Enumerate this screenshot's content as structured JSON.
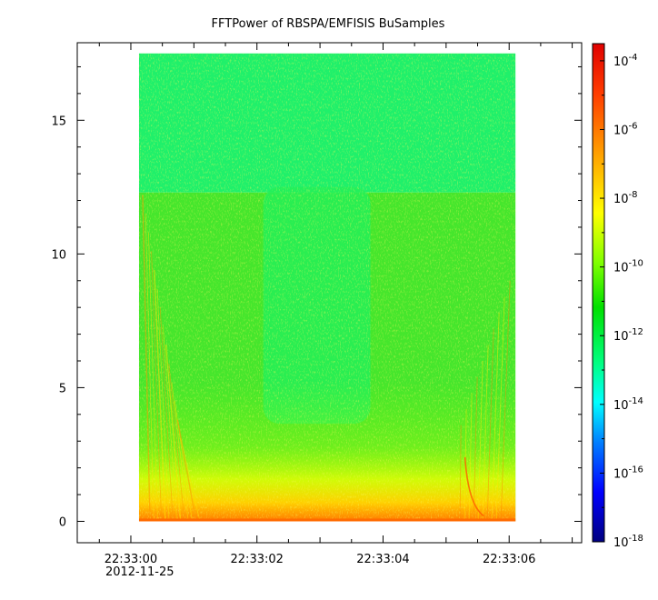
{
  "chart_data": {
    "type": "heatmap",
    "title": "FFTPower of RBSPA/EMFISIS  BuSamples",
    "xlabel": "",
    "ylabel": "",
    "ylim": [
      -0.8,
      17.9
    ],
    "yticks": [
      0,
      5,
      10,
      15
    ],
    "xlim_seconds_after_22_33_00": [
      -0.85,
      7.15
    ],
    "xticks": [
      {
        "t": 0,
        "label": "22:33:00",
        "sublabel": "2012-11-25"
      },
      {
        "t": 2,
        "label": "22:33:02",
        "sublabel": ""
      },
      {
        "t": 4,
        "label": "22:33:04",
        "sublabel": ""
      },
      {
        "t": 6,
        "label": "22:33:06",
        "sublabel": ""
      }
    ],
    "data_extent": {
      "x_start": 0.13,
      "x_end": 6.1,
      "y_start": 0,
      "y_end": 17.5
    },
    "colorbar": {
      "scale": "log",
      "range_exponent": [
        -18,
        -3.5
      ],
      "ticks": [
        {
          "base": "10",
          "exp": "-4"
        },
        {
          "base": "10",
          "exp": "-6"
        },
        {
          "base": "10",
          "exp": "-8"
        },
        {
          "base": "10",
          "exp": "-10"
        },
        {
          "base": "10",
          "exp": "-12"
        },
        {
          "base": "10",
          "exp": "-14"
        },
        {
          "base": "10",
          "exp": "-16"
        },
        {
          "base": "10",
          "exp": "-18"
        }
      ],
      "colors": [
        "#00007f",
        "#0000ff",
        "#007fff",
        "#00ffff",
        "#00ff80",
        "#00e000",
        "#7fff00",
        "#ffff00",
        "#ff9f00",
        "#ff3c00",
        "#e00000"
      ]
    },
    "grid": false
  }
}
